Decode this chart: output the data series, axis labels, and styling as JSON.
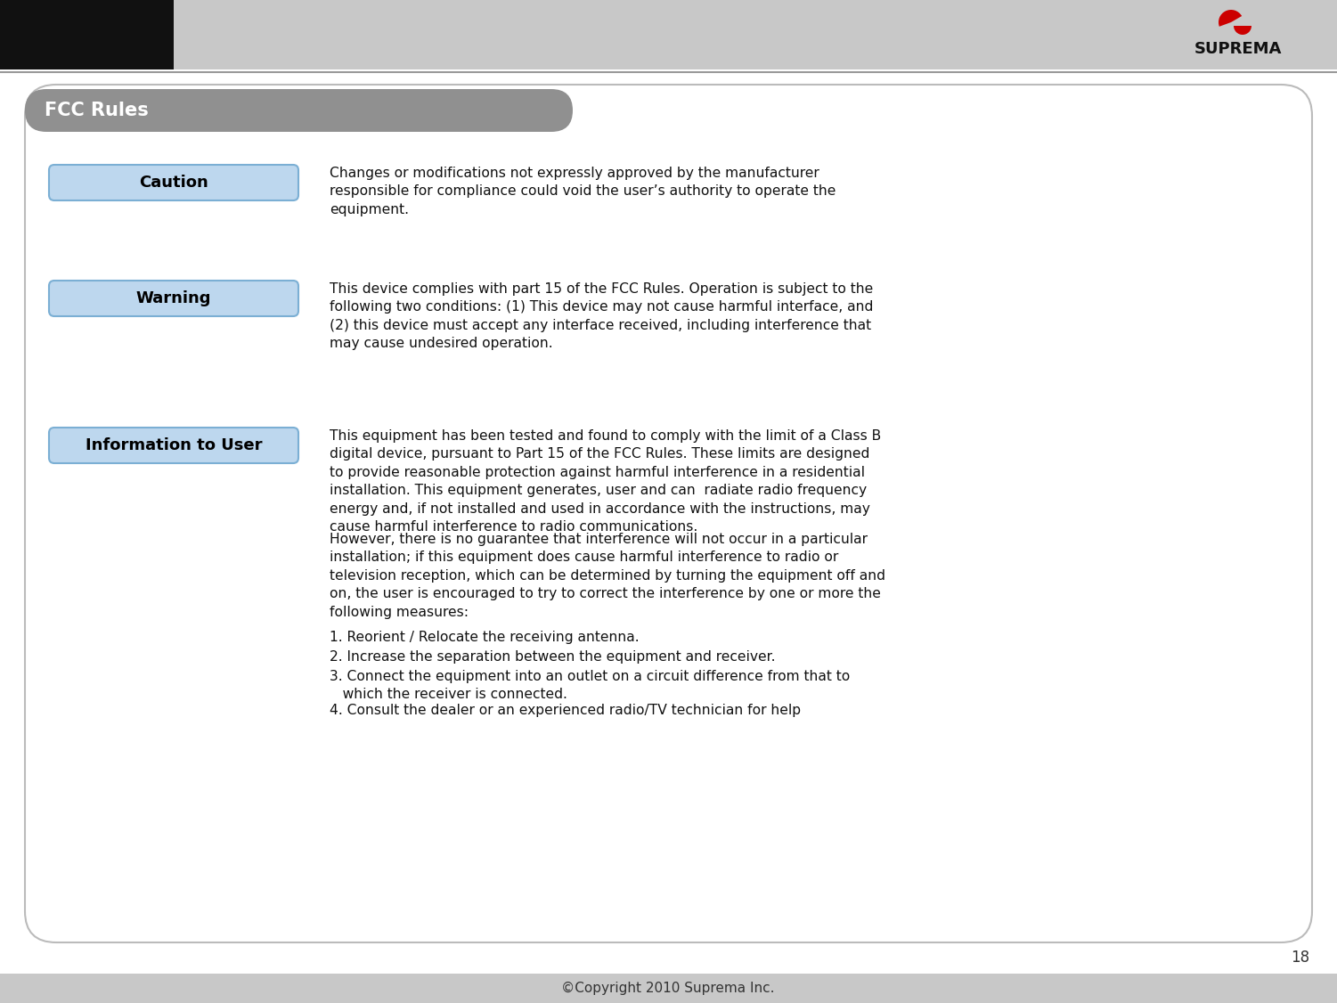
{
  "title": "FCC Rules",
  "header_bg": "#c8c8c8",
  "black_rect": "#111111",
  "page_bg": "#ffffff",
  "content_bg": "#ffffff",
  "content_border": "#bbbbbb",
  "title_bar_color": "#909090",
  "label_bg": "#bdd7ee",
  "label_border": "#7bafd4",
  "label_text_color": "#000000",
  "caution_label": "Caution",
  "warning_label": "Warning",
  "info_label": "Information to User",
  "caution_text": "Changes or modifications not expressly approved by the manufacturer\nresponsible for compliance could void the user’s authority to operate the\nequipment.",
  "warning_text": "This device complies with part 15 of the FCC Rules. Operation is subject to the\nfollowing two conditions: (1) This device may not cause harmful interface, and\n(2) this device must accept any interface received, including interference that\nmay cause undesired operation.",
  "info_text1": "This equipment has been tested and found to comply with the limit of a Class B\ndigital device, pursuant to Part 15 of the FCC Rules. These limits are designed\nto provide reasonable protection against harmful interference in a residential\ninstallation. This equipment generates, user and can  radiate radio frequency\nenergy and, if not installed and used in accordance with the instructions, may\ncause harmful interference to radio communications.",
  "info_text2": "However, there is no guarantee that interference will not occur in a particular\ninstallation; if this equipment does cause harmful interference to radio or\ntelevision reception, which can be determined by turning the equipment off and\non, the user is encouraged to try to correct the interference by one or more the\nfollowing measures:",
  "list_item1": "1. Reorient / Relocate the receiving antenna.",
  "list_item2": "2. Increase the separation between the equipment and receiver.",
  "list_item3": "3. Connect the equipment into an outlet on a circuit difference from that to\n   which the receiver is connected.",
  "list_item4": "4. Consult the dealer or an experienced radio/TV technician for help",
  "footer_text": "©Copyright 2010 Suprema Inc.",
  "page_number": "18",
  "suprema_text": "SUPREMA"
}
